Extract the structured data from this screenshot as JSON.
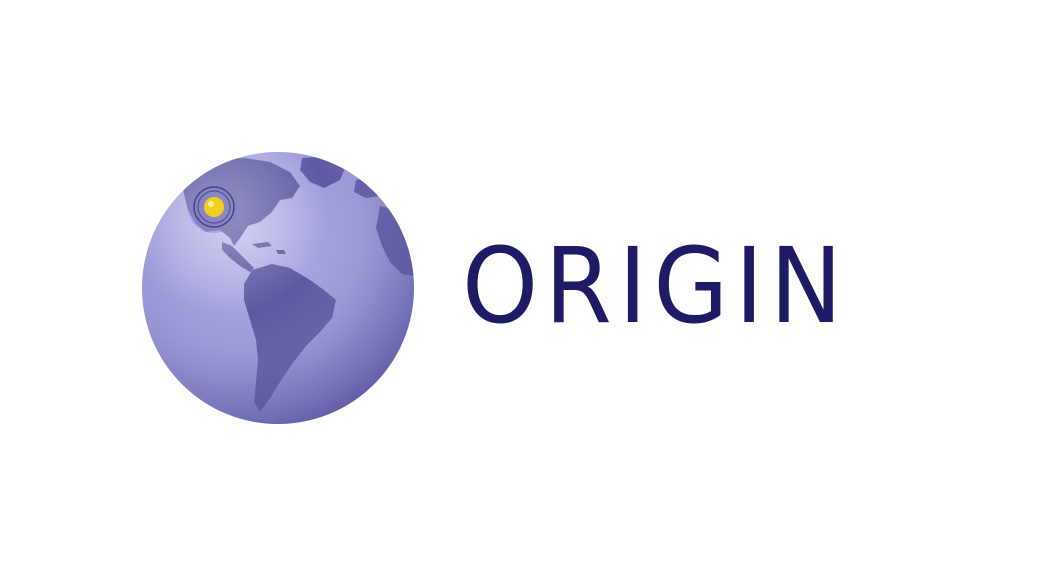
{
  "brand": {
    "wordmark": "ORIGIN",
    "wordmark_color": "#1e1a66",
    "globe_icon": "globe-americas-icon",
    "marker_icon": "location-pin-icon"
  },
  "colors": {
    "background": "#ffffff",
    "ocean_light": "#a9a7e0",
    "ocean_dark": "#6f6cb8",
    "land": "#5a579f",
    "marker": "#f2cf1f",
    "marker_ring": "#3a3580"
  }
}
